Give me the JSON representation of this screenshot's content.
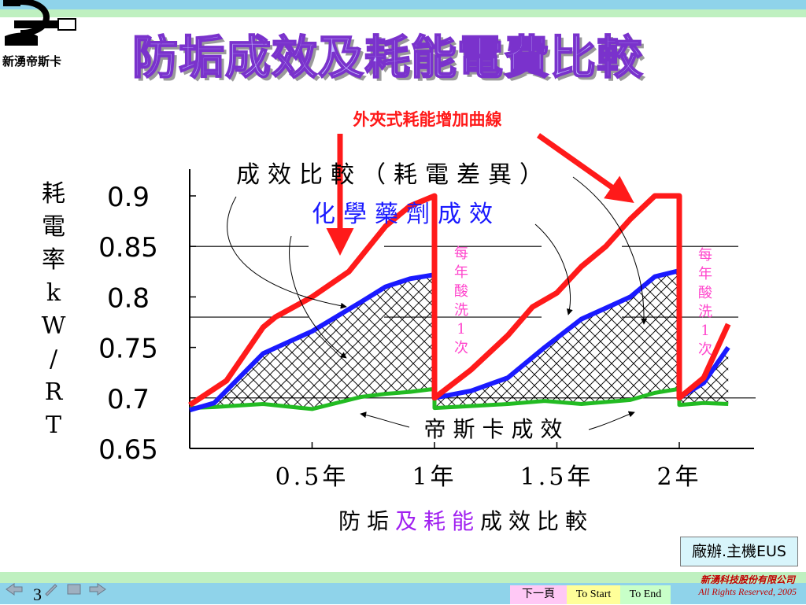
{
  "header": {
    "title": "防垢成效及耗能電費比較",
    "logo_text": "新湧帝斯卡"
  },
  "chart_data": {
    "type": "line",
    "ylabel": "耗電率kW/RT",
    "xlabel": "防垢及耗能成效比較",
    "xlabel_parts": [
      "防垢",
      "及耗能",
      "成效比較"
    ],
    "ylim": [
      0.65,
      0.92
    ],
    "yticks": [
      "0.9",
      "0.85",
      "0.8",
      "0.75",
      "0.7",
      "0.65"
    ],
    "xticks": [
      "0.5年",
      "1年",
      "1.5年",
      "2年"
    ],
    "grid": "partial horizontal lines at 0.85, 0.78, 0.7",
    "series": [
      {
        "name": "外夾式耗能增加曲線",
        "color": "#ff1a1a",
        "x": [
          0,
          0.15,
          0.3,
          0.35,
          0.5,
          0.65,
          0.8,
          0.9,
          1.0,
          1.0,
          1.15,
          1.3,
          1.4,
          1.5,
          1.6,
          1.7,
          1.8,
          1.9,
          2.0,
          2.0,
          2.1,
          2.2
        ],
        "y": [
          0.693,
          0.717,
          0.77,
          0.78,
          0.8,
          0.825,
          0.87,
          0.89,
          0.9,
          0.7,
          0.728,
          0.762,
          0.79,
          0.804,
          0.83,
          0.85,
          0.877,
          0.9,
          0.9,
          0.7,
          0.72,
          0.773
        ]
      },
      {
        "name": "化學藥劑成效",
        "color": "#1a1aff",
        "x": [
          0,
          0.1,
          0.3,
          0.5,
          0.7,
          0.8,
          0.9,
          1.0,
          1.0,
          1.15,
          1.3,
          1.45,
          1.6,
          1.8,
          1.9,
          2.0,
          2.0,
          2.1,
          2.2
        ],
        "y": [
          0.688,
          0.695,
          0.744,
          0.766,
          0.795,
          0.81,
          0.818,
          0.822,
          0.7,
          0.707,
          0.72,
          0.75,
          0.778,
          0.8,
          0.82,
          0.826,
          0.7,
          0.715,
          0.75
        ]
      },
      {
        "name": "帝斯卡成效",
        "color": "#22bb22",
        "x": [
          0,
          0.1,
          0.3,
          0.5,
          0.7,
          0.8,
          0.9,
          1.0,
          1.0,
          1.15,
          1.3,
          1.45,
          1.6,
          1.8,
          1.9,
          2.0,
          2.0,
          2.1,
          2.2
        ],
        "y": [
          0.69,
          0.691,
          0.694,
          0.689,
          0.701,
          0.704,
          0.706,
          0.709,
          0.69,
          0.692,
          0.694,
          0.697,
          0.694,
          0.698,
          0.705,
          0.709,
          0.693,
          0.695,
          0.694
        ]
      }
    ],
    "annotations": {
      "outer": "外夾式耗能增加曲線",
      "compare": "成效比較（耗電差異）",
      "chemical": "化學藥劑成效",
      "dsk": "帝斯卡成效",
      "acid_wash_1": "每年酸洗1次",
      "acid_wash_2": "每年酸洗1次"
    }
  },
  "footer": {
    "company_box": "廠辦.主機EUS",
    "company_name": "新湧科技股份有限公司",
    "rights": "All Rights Reserved, 2005",
    "page_number": "3",
    "nav": {
      "next": "下一頁",
      "start": "To Start",
      "end": "To End"
    }
  },
  "colors": {
    "title_fill": "#c7c0ff",
    "title_stroke": "#7a32cc",
    "hatch_label": "#ff44cc",
    "arrow_red": "#ff1a1a"
  }
}
